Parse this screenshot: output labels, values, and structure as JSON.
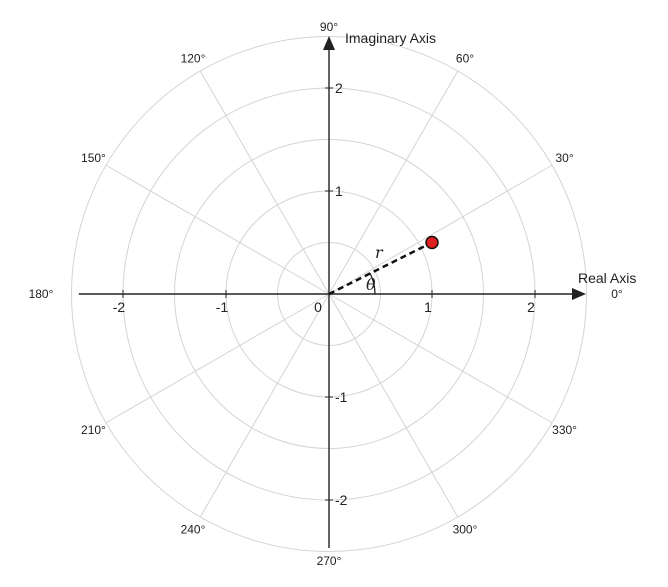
{
  "axes": {
    "real_title": "Real Axis",
    "imaginary_title": "Imaginary Axis",
    "range": [
      -2.4,
      2.4
    ],
    "x_ticks": [
      {
        "value": -2,
        "label": "-2"
      },
      {
        "value": -1,
        "label": "-1"
      },
      {
        "value": 0,
        "label": "0"
      },
      {
        "value": 1,
        "label": "1"
      },
      {
        "value": 2,
        "label": "2"
      }
    ],
    "y_ticks": [
      {
        "value": 2,
        "label": "2"
      },
      {
        "value": 1,
        "label": "1"
      },
      {
        "value": -1,
        "label": "-1"
      },
      {
        "value": -2,
        "label": "-2"
      }
    ]
  },
  "grid": {
    "radii": [
      0.5,
      1.0,
      1.5,
      2.0,
      2.5
    ],
    "spoke_angles_deg": [
      30,
      60,
      120,
      150,
      210,
      240,
      300,
      330
    ]
  },
  "angle_labels": [
    {
      "deg": 0,
      "label": "0°"
    },
    {
      "deg": 30,
      "label": "30°"
    },
    {
      "deg": 60,
      "label": "60°"
    },
    {
      "deg": 90,
      "label": "90°"
    },
    {
      "deg": 120,
      "label": "120°"
    },
    {
      "deg": 150,
      "label": "150°"
    },
    {
      "deg": 180,
      "label": "180°"
    },
    {
      "deg": 210,
      "label": "210°"
    },
    {
      "deg": 240,
      "label": "240°"
    },
    {
      "deg": 270,
      "label": "270°"
    },
    {
      "deg": 300,
      "label": "300°"
    },
    {
      "deg": 330,
      "label": "330°"
    }
  ],
  "point": {
    "real": 1.0,
    "imag": 0.5,
    "color": "#e02020"
  },
  "labels": {
    "radius": "r",
    "angle": "θ"
  },
  "colors": {
    "grid": "#d4d4d4",
    "axis": "#222222",
    "point_fill": "#e02020"
  }
}
